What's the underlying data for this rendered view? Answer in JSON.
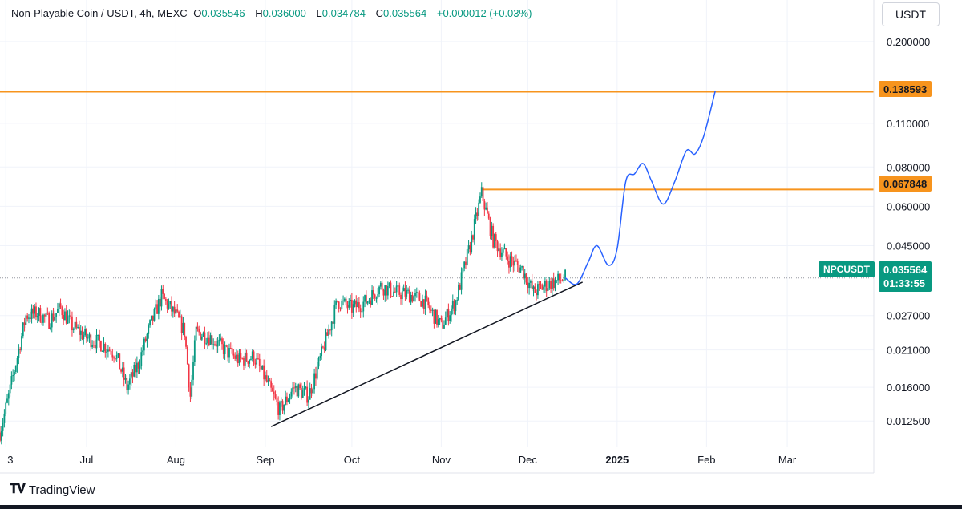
{
  "header": {
    "symbol": "Non-Playable Coin / USDT, 4h, MEXC",
    "open_label": "O",
    "open": "0.035546",
    "high_label": "H",
    "high": "0.036000",
    "low_label": "L",
    "low": "0.034784",
    "close_label": "C",
    "close": "0.035564",
    "change": "+0.000012 (+0.03%)"
  },
  "currency_button": "USDT",
  "levels": {
    "upper": "0.138593",
    "middle": "0.067848"
  },
  "last_price": {
    "symbol": "NPCUSDT",
    "price": "0.035564",
    "countdown": "01:33:55"
  },
  "branding": {
    "name": "TradingView"
  },
  "colors": {
    "bull": "#089981",
    "bear": "#f23645",
    "level": "#f7941d",
    "projection": "#2962ff",
    "trendline": "#131722"
  },
  "chart_data": {
    "type": "candlestick",
    "title": "Non-Playable Coin / USDT, 4h, MEXC",
    "scale": "log",
    "ylim": [
      0.0105,
      0.23
    ],
    "y_ticks": [
      "0.200000",
      "0.110000",
      "0.080000",
      "0.060000",
      "0.045000",
      "0.027000",
      "0.021000",
      "0.016000",
      "0.012500"
    ],
    "x_ticks": [
      "3",
      "Jul",
      "Aug",
      "Sep",
      "Oct",
      "Nov",
      "Dec",
      "2025",
      "Feb",
      "Mar"
    ],
    "x_tick_dates": [
      "2024-06-03",
      "2024-07-01",
      "2024-08-01",
      "2024-09-01",
      "2024-10-01",
      "2024-11-01",
      "2024-12-01",
      "2025-01-01",
      "2025-02-01",
      "2025-03-01"
    ],
    "grid": true,
    "price_path": [
      [
        "2024-06-01",
        0.0115
      ],
      [
        "2024-06-04",
        0.015
      ],
      [
        "2024-06-07",
        0.02
      ],
      [
        "2024-06-10",
        0.027
      ],
      [
        "2024-06-14",
        0.0275
      ],
      [
        "2024-06-18",
        0.026
      ],
      [
        "2024-06-22",
        0.0285
      ],
      [
        "2024-06-26",
        0.025
      ],
      [
        "2024-07-01",
        0.023
      ],
      [
        "2024-07-06",
        0.022
      ],
      [
        "2024-07-11",
        0.0205
      ],
      [
        "2024-07-15",
        0.016
      ],
      [
        "2024-07-19",
        0.019
      ],
      [
        "2024-07-23",
        0.025
      ],
      [
        "2024-07-27",
        0.031
      ],
      [
        "2024-08-01",
        0.027
      ],
      [
        "2024-08-04",
        0.024
      ],
      [
        "2024-08-06",
        0.015
      ],
      [
        "2024-08-08",
        0.024
      ],
      [
        "2024-08-13",
        0.023
      ],
      [
        "2024-08-18",
        0.021
      ],
      [
        "2024-08-23",
        0.0195
      ],
      [
        "2024-08-28",
        0.02
      ],
      [
        "2024-09-01",
        0.017
      ],
      [
        "2024-09-06",
        0.0135
      ],
      [
        "2024-09-11",
        0.016
      ],
      [
        "2024-09-16",
        0.015
      ],
      [
        "2024-09-21",
        0.021
      ],
      [
        "2024-09-26",
        0.03
      ],
      [
        "2024-10-01",
        0.0285
      ],
      [
        "2024-10-06",
        0.03
      ],
      [
        "2024-10-11",
        0.0335
      ],
      [
        "2024-10-16",
        0.032
      ],
      [
        "2024-10-21",
        0.0315
      ],
      [
        "2024-10-26",
        0.03
      ],
      [
        "2024-11-01",
        0.025
      ],
      [
        "2024-11-06",
        0.03
      ],
      [
        "2024-11-11",
        0.045
      ],
      [
        "2024-11-15",
        0.066
      ],
      [
        "2024-11-19",
        0.047
      ],
      [
        "2024-11-24",
        0.041
      ],
      [
        "2024-11-29",
        0.038
      ],
      [
        "2024-12-03",
        0.032
      ],
      [
        "2024-12-08",
        0.034
      ],
      [
        "2024-12-12",
        0.035
      ],
      [
        "2024-12-14",
        0.0356
      ]
    ],
    "projection": [
      [
        "2024-12-14",
        0.0356
      ],
      [
        "2024-12-18",
        0.034
      ],
      [
        "2024-12-22",
        0.04
      ],
      [
        "2024-12-25",
        0.045
      ],
      [
        "2024-12-29",
        0.039
      ],
      [
        "2025-01-01",
        0.044
      ],
      [
        "2025-01-04",
        0.072
      ],
      [
        "2025-01-07",
        0.076
      ],
      [
        "2025-01-10",
        0.082
      ],
      [
        "2025-01-13",
        0.072
      ],
      [
        "2025-01-17",
        0.061
      ],
      [
        "2025-01-21",
        0.072
      ],
      [
        "2025-01-25",
        0.09
      ],
      [
        "2025-01-28",
        0.088
      ],
      [
        "2025-01-31",
        0.1
      ],
      [
        "2025-02-04",
        0.139
      ]
    ],
    "trendline": [
      [
        "2024-09-03",
        0.012
      ],
      [
        "2024-12-20",
        0.0345
      ]
    ],
    "levels": [
      {
        "value": 0.138593,
        "from": "2024-06-01",
        "to": "2025-03-31"
      },
      {
        "value": 0.067848,
        "from": "2024-11-15",
        "to": "2025-03-31"
      }
    ],
    "last_price": 0.035564
  }
}
